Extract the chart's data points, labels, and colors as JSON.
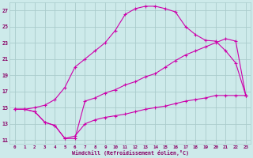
{
  "xlabel": "Windchill (Refroidissement éolien,°C)",
  "bg_color": "#cdeaea",
  "line_color": "#cc00aa",
  "grid_color": "#aacccc",
  "xlim": [
    -0.5,
    23.5
  ],
  "ylim": [
    10.5,
    28.0
  ],
  "yticks": [
    11,
    13,
    15,
    17,
    19,
    21,
    23,
    25,
    27
  ],
  "xticks": [
    0,
    1,
    2,
    3,
    4,
    5,
    6,
    7,
    8,
    9,
    10,
    11,
    12,
    13,
    14,
    15,
    16,
    17,
    18,
    19,
    20,
    21,
    22,
    23
  ],
  "curve1_x": [
    0,
    1,
    2,
    3,
    4,
    5,
    6,
    7,
    8,
    9,
    10,
    11,
    12,
    13,
    14,
    15,
    16,
    17,
    18,
    19,
    20,
    21,
    22,
    23
  ],
  "curve1_y": [
    14.8,
    14.8,
    15.0,
    15.3,
    16.0,
    17.5,
    20.0,
    21.0,
    22.0,
    23.0,
    24.5,
    26.5,
    27.2,
    27.5,
    27.5,
    27.2,
    26.8,
    25.0,
    24.0,
    23.3,
    23.2,
    22.0,
    20.5,
    16.5
  ],
  "curve2_x": [
    0,
    1,
    2,
    3,
    4,
    5,
    6,
    7,
    8,
    9,
    10,
    11,
    12,
    13,
    14,
    15,
    16,
    17,
    18,
    19,
    20,
    21,
    22,
    23
  ],
  "curve2_y": [
    14.8,
    14.8,
    14.5,
    13.2,
    12.8,
    11.2,
    11.2,
    15.8,
    16.2,
    16.8,
    17.2,
    17.8,
    18.2,
    18.8,
    19.2,
    20.0,
    20.8,
    21.5,
    22.0,
    22.5,
    23.0,
    23.5,
    23.2,
    16.5
  ],
  "curve3_x": [
    0,
    1,
    2,
    3,
    4,
    5,
    6,
    7,
    8,
    9,
    10,
    11,
    12,
    13,
    14,
    15,
    16,
    17,
    18,
    19,
    20,
    21,
    22,
    23
  ],
  "curve3_y": [
    14.8,
    14.8,
    14.5,
    13.2,
    12.8,
    11.2,
    11.5,
    13.0,
    13.5,
    13.8,
    14.0,
    14.2,
    14.5,
    14.8,
    15.0,
    15.2,
    15.5,
    15.8,
    16.0,
    16.2,
    16.5,
    16.5,
    16.5,
    16.5
  ]
}
